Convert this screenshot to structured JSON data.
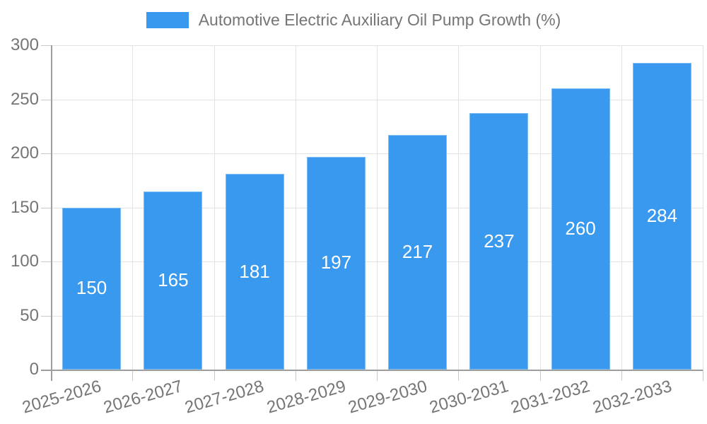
{
  "legend": {
    "series_label": "Automotive Electric Auxiliary Oil Pump Growth (%)"
  },
  "colors": {
    "bar": "#3999EE",
    "bar_edge": "#7DBCF4",
    "grid": "#E3E3E3",
    "axis": "#9E9E9E",
    "tick": "#C9C9C9",
    "text": "#757575",
    "value_label": "#FFFFFF",
    "background": "#FFFFFF"
  },
  "chart_data": {
    "type": "bar",
    "title": "Automotive Electric Auxiliary Oil Pump Growth (%)",
    "categories": [
      "2025-2026",
      "2026-2027",
      "2027-2028",
      "2028-2029",
      "2029-2030",
      "2030-2031",
      "2031-2032",
      "2032-2033"
    ],
    "values": [
      150,
      165,
      181,
      197,
      217,
      237,
      260,
      284
    ],
    "xlabel": "",
    "ylabel": "",
    "ylim": [
      0,
      300
    ],
    "yticks": [
      0,
      50,
      100,
      150,
      200,
      250,
      300
    ],
    "grid": true,
    "legend_position": "top-center",
    "value_labels": "inside-center",
    "x_label_rotation_deg": -16
  }
}
